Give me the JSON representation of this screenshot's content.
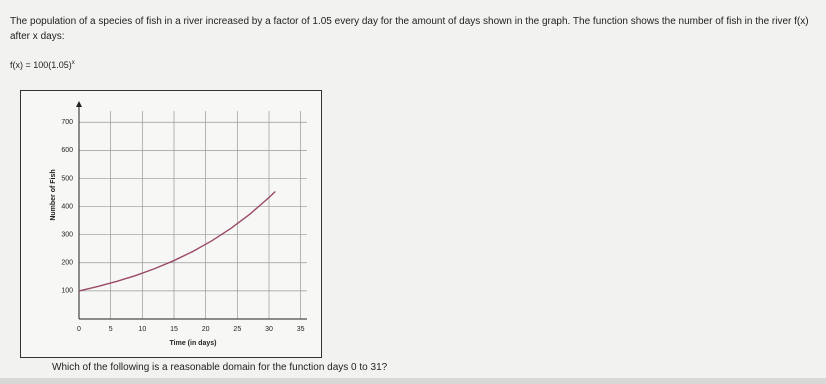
{
  "question": "The population of a species of fish in a river increased by a factor of 1.05 every day for the amount of days shown in the graph. The function shows the number of fish in the river f(x) after x days:",
  "function_base": "f(x) = 100(1.05)",
  "function_exponent": "x",
  "prompt": "Which of the following is a reasonable domain for the function days 0 to 31?",
  "chart_data": {
    "type": "line",
    "x_label": "Time (in days)",
    "y_label": "Number of Fish",
    "x": [
      0,
      3,
      6,
      9,
      12,
      15,
      18,
      21,
      24,
      27,
      30,
      31
    ],
    "series": [
      {
        "color": "#9a4a68",
        "values": [
          100,
          115.8,
          134.0,
          155.1,
          179.6,
          207.9,
          240.7,
          278.6,
          322.5,
          373.3,
          432.2,
          453.8
        ]
      }
    ],
    "xlim": [
      0,
      36
    ],
    "xticks": [
      0,
      5,
      10,
      15,
      20,
      25,
      30,
      35
    ],
    "ylim": [
      0,
      740
    ],
    "yticks": [
      100,
      200,
      300,
      400,
      500,
      600,
      700
    ],
    "grid": true
  }
}
